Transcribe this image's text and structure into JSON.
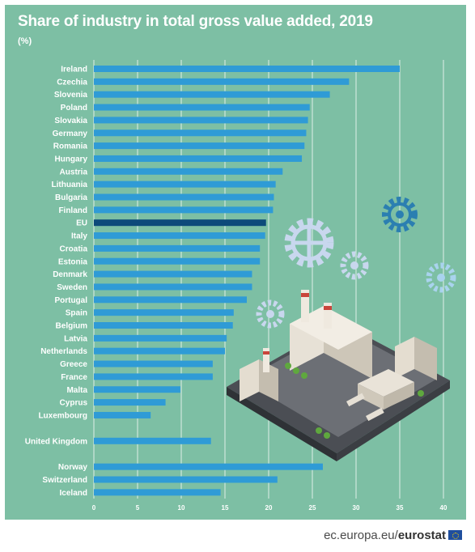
{
  "header": {
    "title": "Share of industry in total gross value added, 2019",
    "unit": "(%)"
  },
  "footer": {
    "site": "ec.europa.eu/",
    "brand": "eurostat",
    "flag_icon": "eu-flag-icon"
  },
  "colors": {
    "background": "#7dbfa4",
    "bar": "#2f9bd6",
    "bar_highlight": "#0d4a7a",
    "text": "#ffffff",
    "grid": "#ffffff"
  },
  "illustration": "factory-with-gears-icon",
  "chart_data": {
    "type": "bar",
    "orientation": "horizontal",
    "title": "Share of industry in total gross value added, 2019",
    "xlabel": "",
    "ylabel": "",
    "unit": "(%)",
    "xlim": [
      0,
      40
    ],
    "xticks": [
      0,
      5,
      10,
      15,
      20,
      25,
      30,
      35,
      40
    ],
    "grid": true,
    "highlight": "EU",
    "categories": [
      "Ireland",
      "Czechia",
      "Slovenia",
      "Poland",
      "Slovakia",
      "Germany",
      "Romania",
      "Hungary",
      "Austria",
      "Lithuania",
      "Bulgaria",
      "Finland",
      "EU",
      "Italy",
      "Croatia",
      "Estonia",
      "Denmark",
      "Sweden",
      "Portugal",
      "Spain",
      "Belgium",
      "Latvia",
      "Netherlands",
      "Greece",
      "France",
      "Malta",
      "Cyprus",
      "Luxembourg",
      "United Kingdom",
      "Norway",
      "Switzerland",
      "Iceland"
    ],
    "values": [
      35.0,
      29.2,
      27.0,
      24.7,
      24.5,
      24.3,
      24.1,
      23.8,
      21.6,
      20.8,
      20.6,
      20.5,
      19.7,
      19.6,
      19.0,
      19.0,
      18.1,
      18.1,
      17.5,
      16.0,
      15.9,
      15.2,
      15.0,
      13.6,
      13.6,
      9.9,
      8.2,
      6.5,
      13.4,
      26.2,
      21.0,
      14.5
    ],
    "groups": [
      28,
      1,
      3
    ]
  }
}
